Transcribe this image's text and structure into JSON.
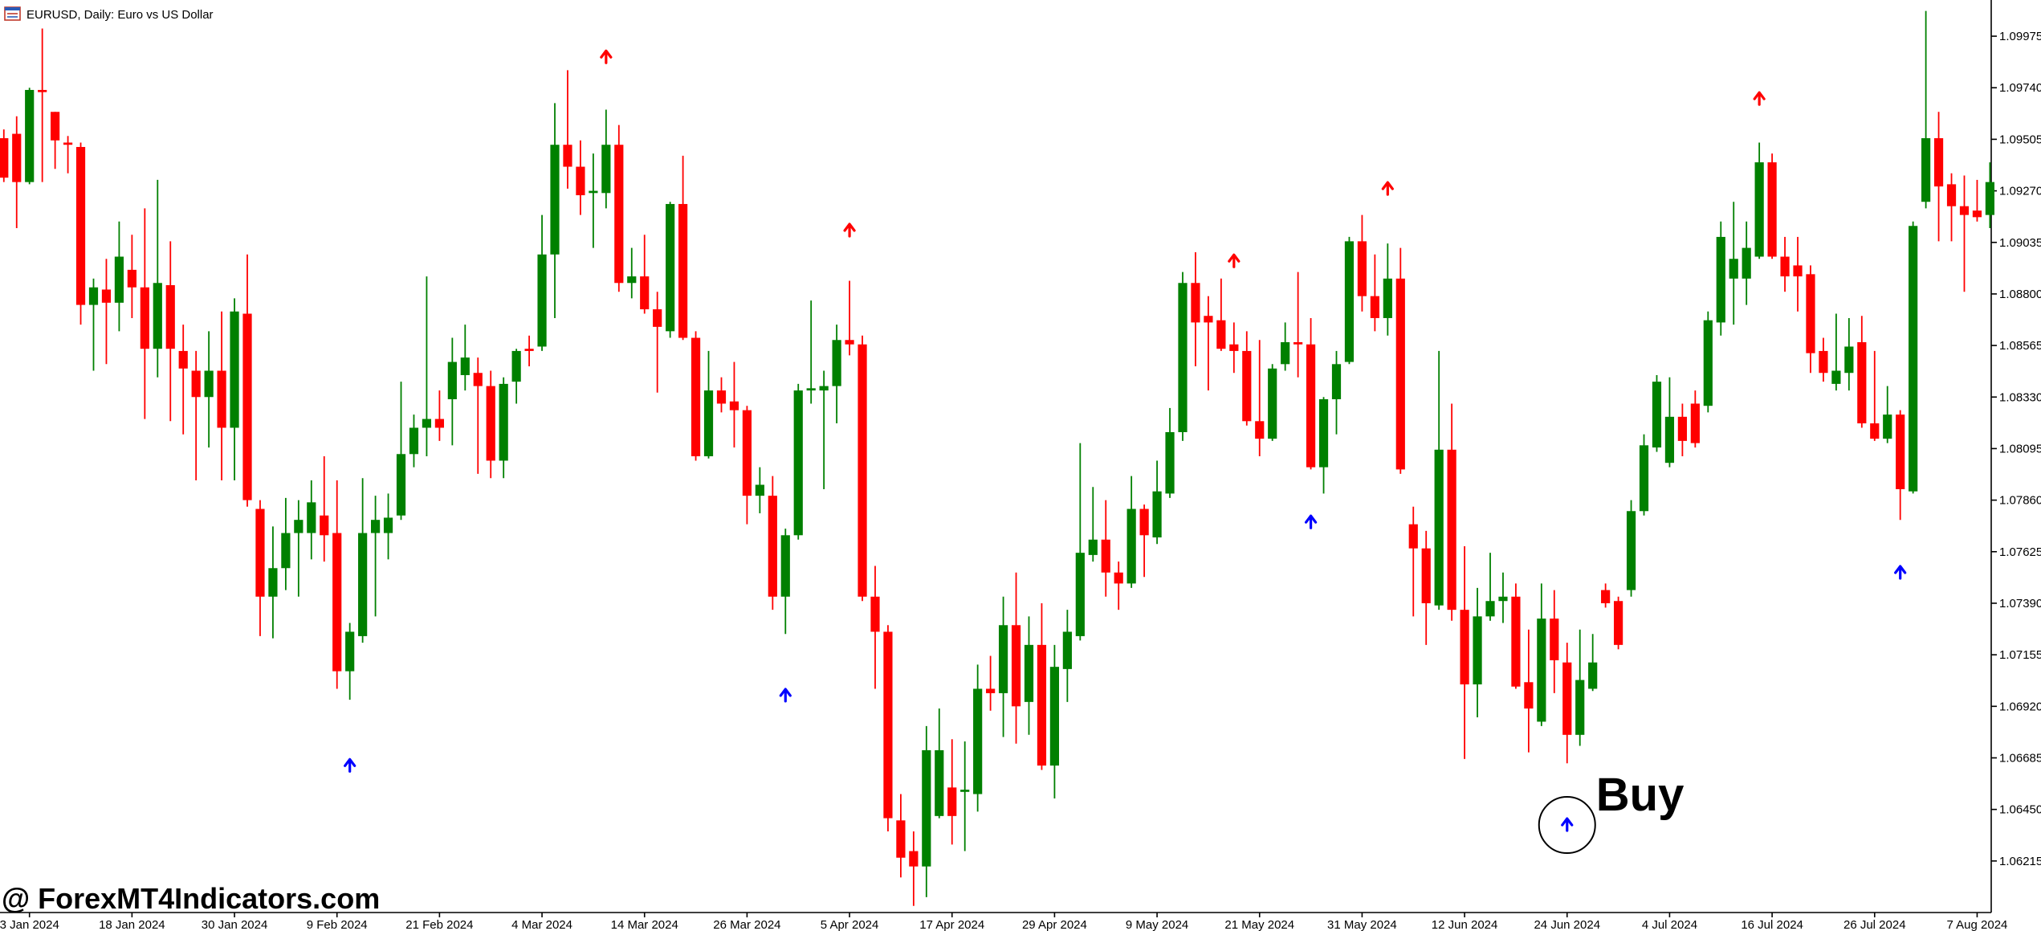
{
  "chart_data": {
    "type": "candlestick",
    "title": "EURUSD, Daily:  Euro vs US Dollar",
    "watermark": "@ ForexMT4Indicators.com",
    "annotation": {
      "text": "Buy",
      "x": 122,
      "y": 1.0639
    },
    "up_color": "#008000",
    "down_color": "#ff0000",
    "xlim": [
      -0.3,
      155.1
    ],
    "ylim": [
      1.0598,
      1.1014
    ],
    "yticks": [
      {
        "value": 1.09975,
        "label": "1.09975"
      },
      {
        "value": 1.0974,
        "label": "1.09740"
      },
      {
        "value": 1.09505,
        "label": "1.09505"
      },
      {
        "value": 1.0927,
        "label": "1.09270"
      },
      {
        "value": 1.09035,
        "label": "1.09035"
      },
      {
        "value": 1.088,
        "label": "1.08800"
      },
      {
        "value": 1.08565,
        "label": "1.08565"
      },
      {
        "value": 1.0833,
        "label": "1.08330"
      },
      {
        "value": 1.08095,
        "label": "1.08095"
      },
      {
        "value": 1.0786,
        "label": "1.07860"
      },
      {
        "value": 1.07625,
        "label": "1.07625"
      },
      {
        "value": 1.0739,
        "label": "1.07390"
      },
      {
        "value": 1.07155,
        "label": "1.07155"
      },
      {
        "value": 1.0692,
        "label": "1.06920"
      },
      {
        "value": 1.06685,
        "label": "1.06685"
      },
      {
        "value": 1.0645,
        "label": "1.06450"
      },
      {
        "value": 1.06215,
        "label": "1.06215"
      }
    ],
    "xticks": [
      {
        "value": 2,
        "label": "3 Jan 2024"
      },
      {
        "value": 10,
        "label": "18 Jan 2024"
      },
      {
        "value": 18,
        "label": "30 Jan 2024"
      },
      {
        "value": 26,
        "label": "9 Feb 2024"
      },
      {
        "value": 34,
        "label": "21 Feb 2024"
      },
      {
        "value": 42,
        "label": "4 Mar 2024"
      },
      {
        "value": 50,
        "label": "14 Mar 2024"
      },
      {
        "value": 58,
        "label": "26 Mar 2024"
      },
      {
        "value": 66,
        "label": "5 Apr 2024"
      },
      {
        "value": 74,
        "label": "17 Apr 2024"
      },
      {
        "value": 82,
        "label": "29 Apr 2024"
      },
      {
        "value": 90,
        "label": "9 May 2024"
      },
      {
        "value": 98,
        "label": "21 May 2024"
      },
      {
        "value": 106,
        "label": "31 May 2024"
      },
      {
        "value": 114,
        "label": "12 Jun 2024"
      },
      {
        "value": 122,
        "label": "24 Jun 2024"
      },
      {
        "value": 130,
        "label": "4 Jul 2024"
      },
      {
        "value": 138,
        "label": "16 Jul 2024"
      },
      {
        "value": 146,
        "label": "26 Jul 2024"
      },
      {
        "value": 154,
        "label": "7 Aug 2024"
      }
    ],
    "arrows": [
      {
        "color": "#ff0000",
        "x": [
          47,
          66,
          96,
          108,
          137
        ],
        "values": [
          1.0989,
          1.091,
          1.0896,
          1.0929,
          1.097
        ]
      },
      {
        "color": "#0000ff",
        "x": [
          27,
          61,
          102,
          122,
          148
        ],
        "values": [
          1.0666,
          1.0698,
          1.0777,
          1.0639,
          1.0754
        ]
      }
    ],
    "ohlc": [
      [
        1.0951,
        1.0955,
        1.0931,
        1.0933
      ],
      [
        1.0953,
        1.0961,
        1.091,
        1.0931
      ],
      [
        1.0931,
        1.0974,
        1.093,
        1.0973
      ],
      [
        1.0973,
        1.1001,
        1.0931,
        1.0972
      ],
      [
        1.0963,
        1.0963,
        1.0937,
        1.095
      ],
      [
        1.0949,
        1.0952,
        1.0935,
        1.0948
      ],
      [
        1.0947,
        1.0949,
        1.0866,
        1.0875
      ],
      [
        1.0875,
        1.0887,
        1.0845,
        1.0883
      ],
      [
        1.0882,
        1.0896,
        1.0848,
        1.0876
      ],
      [
        1.0876,
        1.0913,
        1.0863,
        1.0897
      ],
      [
        1.0891,
        1.0907,
        1.0869,
        1.0883
      ],
      [
        1.0883,
        1.0919,
        1.0823,
        1.0855
      ],
      [
        1.0855,
        1.0932,
        1.0842,
        1.0885
      ],
      [
        1.0884,
        1.0904,
        1.0822,
        1.0855
      ],
      [
        1.0854,
        1.0866,
        1.0816,
        1.0846
      ],
      [
        1.0845,
        1.0854,
        1.0795,
        1.0833
      ],
      [
        1.0833,
        1.0863,
        1.081,
        1.0845
      ],
      [
        1.0845,
        1.0872,
        1.0795,
        1.0819
      ],
      [
        1.0819,
        1.0878,
        1.0795,
        1.0872
      ],
      [
        1.0871,
        1.0898,
        1.0783,
        1.0786
      ],
      [
        1.0782,
        1.0786,
        1.0724,
        1.0742
      ],
      [
        1.0742,
        1.0774,
        1.0723,
        1.0755
      ],
      [
        1.0755,
        1.0787,
        1.0745,
        1.0771
      ],
      [
        1.0771,
        1.0786,
        1.0742,
        1.0777
      ],
      [
        1.0771,
        1.0795,
        1.0759,
        1.0785
      ],
      [
        1.0779,
        1.0806,
        1.0758,
        1.077
      ],
      [
        1.0771,
        1.0795,
        1.07,
        1.0708
      ],
      [
        1.0708,
        1.073,
        1.0695,
        1.0726
      ],
      [
        1.0724,
        1.0796,
        1.0721,
        1.0771
      ],
      [
        1.0771,
        1.0788,
        1.0733,
        1.0777
      ],
      [
        1.0771,
        1.0789,
        1.0759,
        1.0778
      ],
      [
        1.0779,
        1.084,
        1.0777,
        1.0807
      ],
      [
        1.0807,
        1.0825,
        1.0801,
        1.0819
      ],
      [
        1.0819,
        1.0888,
        1.0806,
        1.0823
      ],
      [
        1.0823,
        1.0836,
        1.0813,
        1.0819
      ],
      [
        1.0832,
        1.086,
        1.0811,
        1.0849
      ],
      [
        1.0843,
        1.0866,
        1.0836,
        1.0851
      ],
      [
        1.0844,
        1.0851,
        1.0798,
        1.0838
      ],
      [
        1.0838,
        1.0845,
        1.0796,
        1.0804
      ],
      [
        1.0804,
        1.0842,
        1.0796,
        1.0839
      ],
      [
        1.084,
        1.0855,
        1.083,
        1.0854
      ],
      [
        1.0855,
        1.0861,
        1.0847,
        1.0854
      ],
      [
        1.0856,
        1.0916,
        1.0854,
        1.0898
      ],
      [
        1.0898,
        1.0967,
        1.0869,
        1.0948
      ],
      [
        1.0948,
        1.0982,
        1.0928,
        1.0938
      ],
      [
        1.0938,
        1.095,
        1.0916,
        1.0925
      ],
      [
        1.0926,
        1.0944,
        1.0901,
        1.0927
      ],
      [
        1.0926,
        1.0964,
        1.0919,
        1.0948
      ],
      [
        1.0948,
        1.0957,
        1.0881,
        1.0885
      ],
      [
        1.0885,
        1.0901,
        1.0878,
        1.0888
      ],
      [
        1.0888,
        1.0907,
        1.0871,
        1.0873
      ],
      [
        1.0873,
        1.0881,
        1.0835,
        1.0865
      ],
      [
        1.0863,
        1.0922,
        1.086,
        1.0921
      ],
      [
        1.0921,
        1.0943,
        1.0859,
        1.086
      ],
      [
        1.086,
        1.0863,
        1.0804,
        1.0806
      ],
      [
        1.0806,
        1.0854,
        1.0805,
        1.0836
      ],
      [
        1.0836,
        1.0842,
        1.0826,
        1.083
      ],
      [
        1.0831,
        1.0849,
        1.081,
        1.0827
      ],
      [
        1.0827,
        1.0829,
        1.0775,
        1.0788
      ],
      [
        1.0788,
        1.0801,
        1.078,
        1.0793
      ],
      [
        1.0788,
        1.0797,
        1.0736,
        1.0742
      ],
      [
        1.0742,
        1.0773,
        1.0725,
        1.077
      ],
      [
        1.077,
        1.0839,
        1.0768,
        1.0836
      ],
      [
        1.0836,
        1.0877,
        1.083,
        1.0837
      ],
      [
        1.0836,
        1.0845,
        1.0791,
        1.0838
      ],
      [
        1.0838,
        1.0866,
        1.0821,
        1.0859
      ],
      [
        1.0859,
        1.0886,
        1.0852,
        1.0857
      ],
      [
        1.0857,
        1.0861,
        1.074,
        1.0742
      ],
      [
        1.0742,
        1.0756,
        1.07,
        1.0726
      ],
      [
        1.0726,
        1.0729,
        1.0635,
        1.0641
      ],
      [
        1.064,
        1.0652,
        1.0614,
        1.0623
      ],
      [
        1.0626,
        1.0635,
        1.0601,
        1.0619
      ],
      [
        1.0619,
        1.0683,
        1.0605,
        1.0672
      ],
      [
        1.0642,
        1.0691,
        1.0641,
        1.0672
      ],
      [
        1.0655,
        1.0677,
        1.0629,
        1.0642
      ],
      [
        1.0653,
        1.0676,
        1.0626,
        1.0654
      ],
      [
        1.0652,
        1.0711,
        1.0644,
        1.07
      ],
      [
        1.07,
        1.0715,
        1.069,
        1.0698
      ],
      [
        1.0698,
        1.0742,
        1.0678,
        1.0729
      ],
      [
        1.0729,
        1.0753,
        1.0675,
        1.0692
      ],
      [
        1.0694,
        1.0733,
        1.0679,
        1.072
      ],
      [
        1.072,
        1.0739,
        1.0663,
        1.0665
      ],
      [
        1.0665,
        1.072,
        1.065,
        1.071
      ],
      [
        1.0709,
        1.0736,
        1.0694,
        1.0726
      ],
      [
        1.0724,
        1.0812,
        1.0722,
        1.0762
      ],
      [
        1.0761,
        1.0792,
        1.0758,
        1.0768
      ],
      [
        1.0768,
        1.0786,
        1.0742,
        1.0753
      ],
      [
        1.0753,
        1.0758,
        1.0736,
        1.0748
      ],
      [
        1.0748,
        1.0797,
        1.0746,
        1.0782
      ],
      [
        1.0782,
        1.0784,
        1.0751,
        1.077
      ],
      [
        1.0769,
        1.0804,
        1.0766,
        1.079
      ],
      [
        1.0789,
        1.0828,
        1.0787,
        1.0817
      ],
      [
        1.0817,
        1.089,
        1.0813,
        1.0885
      ],
      [
        1.0885,
        1.0899,
        1.0847,
        1.0867
      ],
      [
        1.087,
        1.0879,
        1.0836,
        1.0867
      ],
      [
        1.0868,
        1.0887,
        1.0854,
        1.0855
      ],
      [
        1.0857,
        1.0867,
        1.0844,
        1.0854
      ],
      [
        1.0854,
        1.0863,
        1.082,
        1.0822
      ],
      [
        1.0822,
        1.0859,
        1.0806,
        1.0814
      ],
      [
        1.0814,
        1.0848,
        1.0813,
        1.0846
      ],
      [
        1.0848,
        1.0867,
        1.0845,
        1.0858
      ],
      [
        1.0858,
        1.089,
        1.0842,
        1.0857
      ],
      [
        1.0857,
        1.0869,
        1.08,
        1.0801
      ],
      [
        1.0801,
        1.0833,
        1.0789,
        1.0832
      ],
      [
        1.0832,
        1.0854,
        1.0816,
        1.0848
      ],
      [
        1.0849,
        1.0906,
        1.0848,
        1.0904
      ],
      [
        1.0904,
        1.0916,
        1.0872,
        1.0879
      ],
      [
        1.0879,
        1.0898,
        1.0863,
        1.0869
      ],
      [
        1.0869,
        1.0903,
        1.0861,
        1.0887
      ],
      [
        1.0887,
        1.0901,
        1.0798,
        1.08
      ],
      [
        1.0775,
        1.0783,
        1.0733,
        1.0764
      ],
      [
        1.0764,
        1.0772,
        1.072,
        1.0739
      ],
      [
        1.0738,
        1.0854,
        1.0736,
        1.0809
      ],
      [
        1.0809,
        1.083,
        1.0731,
        1.0736
      ],
      [
        1.0736,
        1.0765,
        1.0668,
        1.0702
      ],
      [
        1.0702,
        1.0746,
        1.0687,
        1.0733
      ],
      [
        1.0733,
        1.0762,
        1.0731,
        1.074
      ],
      [
        1.074,
        1.0753,
        1.073,
        1.0742
      ],
      [
        1.0742,
        1.0748,
        1.07,
        1.0701
      ],
      [
        1.0703,
        1.0727,
        1.0671,
        1.0691
      ],
      [
        1.0685,
        1.0748,
        1.0683,
        1.0732
      ],
      [
        1.0732,
        1.0745,
        1.0698,
        1.0713
      ],
      [
        1.0712,
        1.0721,
        1.0666,
        1.0679
      ],
      [
        1.0679,
        1.0727,
        1.0674,
        1.0704
      ],
      [
        1.07,
        1.0725,
        1.0699,
        1.0712
      ],
      [
        1.0745,
        1.0748,
        1.0737,
        1.0739
      ],
      [
        1.074,
        1.0742,
        1.0718,
        1.072
      ],
      [
        1.0745,
        1.0786,
        1.0742,
        1.0781
      ],
      [
        1.0781,
        1.0816,
        1.0779,
        1.0811
      ],
      [
        1.081,
        1.0843,
        1.0808,
        1.084
      ],
      [
        1.0803,
        1.0842,
        1.0801,
        1.0824
      ],
      [
        1.0824,
        1.083,
        1.0806,
        1.0813
      ],
      [
        1.083,
        1.0836,
        1.081,
        1.0812
      ],
      [
        1.0829,
        1.0872,
        1.0826,
        1.0868
      ],
      [
        1.0867,
        1.0913,
        1.0861,
        1.0906
      ],
      [
        1.0887,
        1.0922,
        1.0866,
        1.0896
      ],
      [
        1.0887,
        1.0913,
        1.0875,
        1.0901
      ],
      [
        1.0897,
        1.0949,
        1.0896,
        1.094
      ],
      [
        1.094,
        1.0944,
        1.0896,
        1.0897
      ],
      [
        1.0897,
        1.0906,
        1.0881,
        1.0888
      ],
      [
        1.0893,
        1.0906,
        1.0872,
        1.0888
      ],
      [
        1.0889,
        1.0893,
        1.0844,
        1.0853
      ],
      [
        1.0854,
        1.086,
        1.084,
        1.0844
      ],
      [
        1.0839,
        1.0871,
        1.0836,
        1.0845
      ],
      [
        1.0844,
        1.0869,
        1.0836,
        1.0856
      ],
      [
        1.0858,
        1.087,
        1.0819,
        1.0821
      ],
      [
        1.0821,
        1.0854,
        1.0813,
        1.0814
      ],
      [
        1.0814,
        1.0838,
        1.0812,
        1.0825
      ],
      [
        1.0825,
        1.0827,
        1.0777,
        1.0791
      ],
      [
        1.079,
        1.0913,
        1.0789,
        1.0911
      ],
      [
        1.0922,
        1.1009,
        1.0919,
        1.0951
      ],
      [
        1.0951,
        1.0963,
        1.0904,
        1.0929
      ],
      [
        1.093,
        1.0935,
        1.0904,
        1.092
      ],
      [
        1.092,
        1.0934,
        1.0881,
        1.0916
      ],
      [
        1.0918,
        1.0932,
        1.0913,
        1.0915
      ],
      [
        1.0916,
        1.094,
        1.091,
        1.0931
      ]
    ]
  }
}
